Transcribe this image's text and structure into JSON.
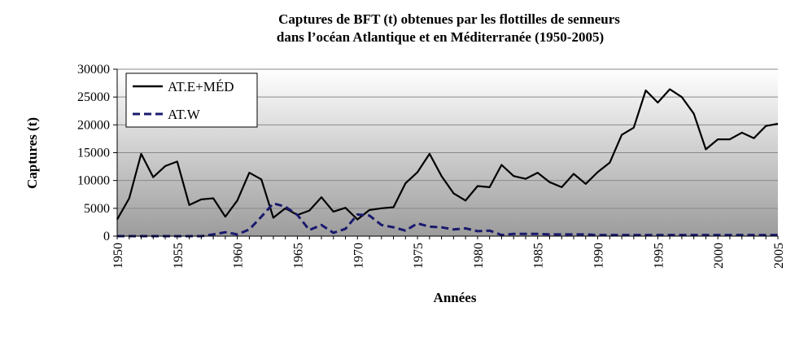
{
  "chart_data": {
    "type": "line",
    "title_lines": [
      "Captures de BFT (t) obtenues par les flottilles de senneurs",
      "dans l’océan Atlantique et en Méditerranée (1950-2005)"
    ],
    "xlabel": "Années",
    "ylabel": "Captures (t)",
    "xlim": [
      1950,
      2005
    ],
    "ylim": [
      0,
      30000
    ],
    "y_ticks": [
      0,
      5000,
      10000,
      15000,
      20000,
      25000,
      30000
    ],
    "y_tick_labels": [
      "0",
      "5000",
      "10000",
      "15000",
      "20000",
      "25000",
      "30000"
    ],
    "x_ticks": [
      1950,
      1955,
      1960,
      1965,
      1970,
      1975,
      1980,
      1985,
      1990,
      1995,
      2000,
      2005
    ],
    "x_tick_labels": [
      "1950",
      "1955",
      "1960",
      "1965",
      "1970",
      "1975",
      "1980",
      "1985",
      "1990",
      "1995",
      "2000",
      "2005"
    ],
    "legend_position": "top-left",
    "background": "gradient grey",
    "series": [
      {
        "name": "AT.E+MÉD",
        "style": "solid",
        "color": "#000000",
        "x": [
          1950,
          1951,
          1952,
          1953,
          1954,
          1955,
          1956,
          1957,
          1958,
          1959,
          1960,
          1961,
          1962,
          1963,
          1964,
          1965,
          1966,
          1967,
          1968,
          1969,
          1970,
          1971,
          1972,
          1973,
          1974,
          1975,
          1976,
          1977,
          1978,
          1979,
          1980,
          1981,
          1982,
          1983,
          1984,
          1985,
          1986,
          1987,
          1988,
          1989,
          1990,
          1991,
          1992,
          1993,
          1994,
          1995,
          1996,
          1997,
          1998,
          1999,
          2000,
          2001,
          2002,
          2003,
          2004,
          2005
        ],
        "values": [
          3000,
          6800,
          14800,
          10600,
          12600,
          13400,
          5600,
          6600,
          6800,
          3500,
          6400,
          11400,
          10200,
          3300,
          5000,
          3800,
          4600,
          7000,
          4400,
          5100,
          3000,
          4700,
          5000,
          5200,
          9500,
          11500,
          14800,
          10800,
          7700,
          6400,
          9000,
          8800,
          12800,
          10800,
          10300,
          11400,
          9700,
          8800,
          11200,
          9400,
          11500,
          13200,
          18200,
          19500,
          26200,
          24000,
          26400,
          25000,
          22000,
          15600,
          17400,
          17400,
          18600,
          17600,
          19800,
          20200
        ]
      },
      {
        "name": "AT.W",
        "style": "dashed",
        "color": "#1a1a6e",
        "x": [
          1950,
          1951,
          1952,
          1953,
          1954,
          1955,
          1956,
          1957,
          1958,
          1959,
          1960,
          1961,
          1962,
          1963,
          1964,
          1965,
          1966,
          1967,
          1968,
          1969,
          1970,
          1971,
          1972,
          1973,
          1974,
          1975,
          1976,
          1977,
          1978,
          1979,
          1980,
          1981,
          1982,
          1983,
          1984,
          1985,
          1986,
          1987,
          1988,
          1989,
          1990,
          1991,
          1992,
          1993,
          1994,
          1995,
          1996,
          1997,
          1998,
          1999,
          2000,
          2001,
          2002,
          2003,
          2004,
          2005
        ],
        "values": [
          0,
          0,
          0,
          0,
          0,
          0,
          0,
          0,
          300,
          700,
          300,
          1200,
          3500,
          5900,
          5300,
          3800,
          1100,
          2000,
          600,
          1300,
          3900,
          3700,
          2000,
          1600,
          1000,
          2300,
          1700,
          1600,
          1200,
          1400,
          900,
          1000,
          200,
          400,
          400,
          400,
          300,
          300,
          300,
          300,
          200,
          200,
          200,
          200,
          200,
          200,
          200,
          200,
          200,
          200,
          200,
          200,
          200,
          200,
          200,
          200
        ]
      }
    ]
  }
}
